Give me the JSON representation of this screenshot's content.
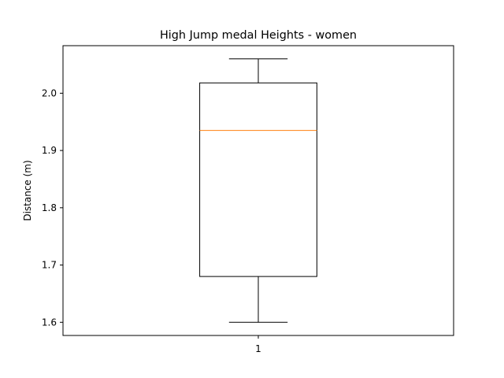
{
  "chart_data": {
    "type": "box",
    "title": "High Jump medal Heights - women",
    "xlabel": "",
    "ylabel": "Distance (m)",
    "categories": [
      "1"
    ],
    "ylim": [
      1.577,
      2.083
    ],
    "yticks": [
      1.6,
      1.7,
      1.8,
      1.9,
      2.0
    ],
    "ytick_labels": [
      "1.6",
      "1.7",
      "1.8",
      "1.9",
      "2.0"
    ],
    "boxes": [
      {
        "category": "1",
        "whisker_low": 1.6,
        "q1": 1.68,
        "median": 1.935,
        "q3": 2.018,
        "whisker_high": 2.06
      }
    ],
    "grid": false,
    "colors": {
      "median": "#ff7f0e",
      "box": "#000000"
    }
  }
}
